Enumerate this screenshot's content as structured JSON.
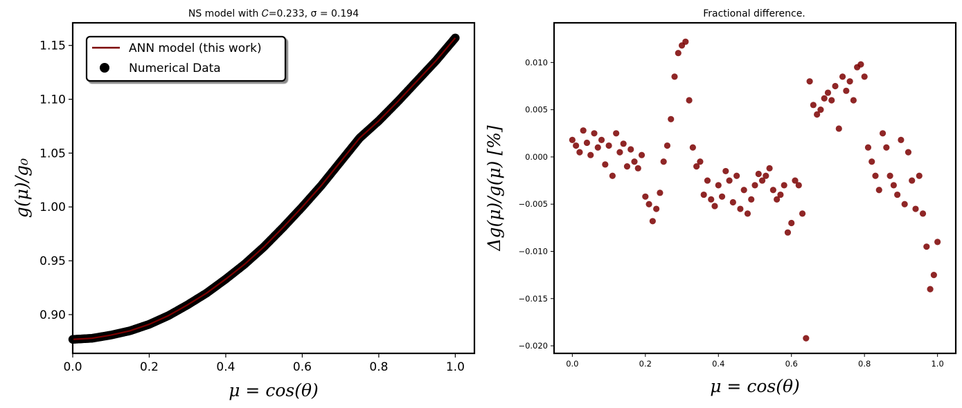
{
  "chart_data": [
    {
      "type": "line",
      "title": "NS model with 𝐶=0.233, σ = 0.194",
      "xlabel": "μ = cos(θ)",
      "ylabel": "g(μ)/g₀",
      "xlim": [
        0.0,
        1.05
      ],
      "ylim": [
        0.864,
        1.171
      ],
      "xticks": [
        "0.0",
        "0.2",
        "0.4",
        "0.6",
        "0.8",
        "1.0"
      ],
      "yticks": [
        "0.90",
        "0.95",
        "1.00",
        "1.05",
        "1.10",
        "1.15"
      ],
      "grid": false,
      "legend_position": "upper-left",
      "legend": [
        "ANN model (this work)",
        "Numerical Data"
      ],
      "colors": {
        "line": "#7b0000",
        "points": "#000000"
      },
      "x": [
        0.0,
        0.05,
        0.1,
        0.15,
        0.2,
        0.25,
        0.3,
        0.35,
        0.4,
        0.45,
        0.5,
        0.55,
        0.6,
        0.65,
        0.7,
        0.75,
        0.8,
        0.85,
        0.9,
        0.95,
        1.0
      ],
      "series": [
        {
          "name": "ANN model (this work)",
          "values": [
            0.877,
            0.878,
            0.881,
            0.885,
            0.891,
            0.899,
            0.909,
            0.92,
            0.933,
            0.947,
            0.963,
            0.981,
            1.0,
            1.02,
            1.042,
            1.064,
            1.08,
            1.098,
            1.117,
            1.136,
            1.157
          ]
        },
        {
          "name": "Numerical Data",
          "values": [
            0.877,
            0.878,
            0.881,
            0.885,
            0.891,
            0.899,
            0.909,
            0.92,
            0.933,
            0.947,
            0.963,
            0.981,
            1.0,
            1.02,
            1.042,
            1.064,
            1.08,
            1.098,
            1.117,
            1.136,
            1.157
          ]
        }
      ]
    },
    {
      "type": "scatter",
      "title": "Fractional difference.",
      "xlabel": "μ = cos(θ)",
      "ylabel": "Δg(μ)/g(μ) [%]",
      "xlim": [
        -0.05,
        1.05
      ],
      "ylim": [
        -0.0208,
        0.0142
      ],
      "xticks": [
        "0.0",
        "0.2",
        "0.4",
        "0.6",
        "0.8",
        "1.0"
      ],
      "yticks": [
        "0.010",
        "0.005",
        "0.000",
        "−0.005",
        "−0.010",
        "−0.015",
        "−0.020"
      ],
      "grid": false,
      "colors": {
        "points": "#7b0000"
      },
      "series": [
        {
          "x": [
            0.0,
            0.01,
            0.02,
            0.03,
            0.04,
            0.05,
            0.06,
            0.07,
            0.08,
            0.09,
            0.1,
            0.11,
            0.12,
            0.13,
            0.14,
            0.15,
            0.16,
            0.17,
            0.18,
            0.19,
            0.2,
            0.21,
            0.22,
            0.23,
            0.24,
            0.25,
            0.26,
            0.27,
            0.28,
            0.29,
            0.3,
            0.31,
            0.32,
            0.33,
            0.34,
            0.35,
            0.36,
            0.37,
            0.38,
            0.39,
            0.4,
            0.41,
            0.42,
            0.43,
            0.44,
            0.45,
            0.46,
            0.47,
            0.48,
            0.49,
            0.5,
            0.51,
            0.52,
            0.53,
            0.54,
            0.55,
            0.56,
            0.57,
            0.58,
            0.59,
            0.6,
            0.61,
            0.62,
            0.63,
            0.64,
            0.65,
            0.66,
            0.67,
            0.68,
            0.69,
            0.7,
            0.71,
            0.72,
            0.73,
            0.74,
            0.75,
            0.76,
            0.77,
            0.78,
            0.79,
            0.8,
            0.81,
            0.82,
            0.83,
            0.84,
            0.85,
            0.86,
            0.87,
            0.88,
            0.89,
            0.9,
            0.91,
            0.92,
            0.93,
            0.94,
            0.95,
            0.96,
            0.97,
            0.98,
            0.99,
            1.0
          ],
          "values": [
            0.0018,
            0.0012,
            0.0005,
            0.0028,
            0.0015,
            0.0002,
            0.0025,
            0.001,
            0.0018,
            -0.0008,
            0.0012,
            -0.002,
            0.0025,
            0.0005,
            0.0014,
            -0.001,
            0.0008,
            -0.0005,
            -0.0012,
            0.0002,
            -0.0042,
            -0.005,
            -0.0068,
            -0.0055,
            -0.0038,
            -0.0005,
            0.0012,
            0.004,
            0.0085,
            0.011,
            0.0118,
            0.0122,
            0.006,
            0.001,
            -0.001,
            -0.0005,
            -0.004,
            -0.0025,
            -0.0045,
            -0.0052,
            -0.003,
            -0.0042,
            -0.0015,
            -0.0025,
            -0.0048,
            -0.002,
            -0.0055,
            -0.0035,
            -0.006,
            -0.0045,
            -0.003,
            -0.0018,
            -0.0025,
            -0.002,
            -0.0012,
            -0.0035,
            -0.0045,
            -0.004,
            -0.003,
            -0.008,
            -0.007,
            -0.0025,
            -0.003,
            -0.006,
            -0.0192,
            0.008,
            0.0055,
            0.0045,
            0.005,
            0.0062,
            0.0068,
            0.006,
            0.0075,
            0.003,
            0.0085,
            0.007,
            0.008,
            0.006,
            0.0095,
            0.0098,
            0.0085,
            0.001,
            -0.0005,
            -0.002,
            -0.0035,
            0.0025,
            0.001,
            -0.002,
            -0.003,
            -0.004,
            0.0018,
            -0.005,
            0.0005,
            -0.0025,
            -0.0055,
            -0.002,
            -0.006,
            -0.0095,
            -0.014,
            -0.0125,
            -0.009
          ]
        }
      ]
    }
  ]
}
